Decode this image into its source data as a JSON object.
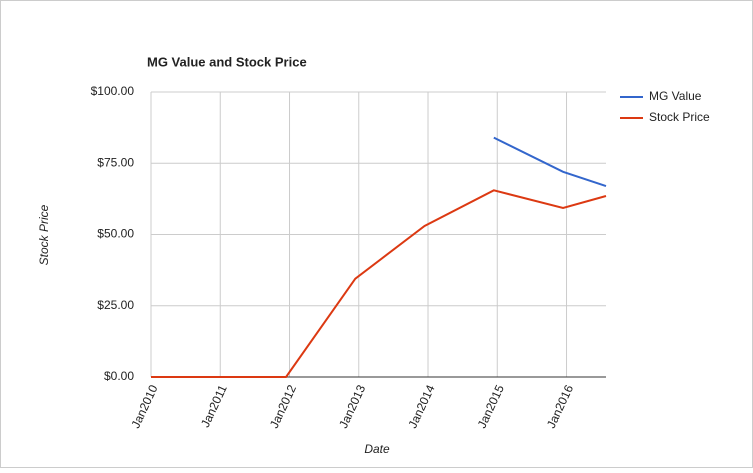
{
  "chart_data": {
    "type": "line",
    "title": "MG Value and Stock Price",
    "x_label": "Date",
    "y_label": "Stock Price",
    "x": [
      2010,
      2011,
      2011.95,
      2012.95,
      2013.95,
      2014.95,
      2015.95,
      2016.57
    ],
    "series": [
      {
        "name": "MG Value",
        "color": "#3366cc",
        "values": [
          null,
          null,
          null,
          null,
          null,
          84,
          72,
          67
        ]
      },
      {
        "name": "Stock Price",
        "color": "#dc3912",
        "values": [
          0,
          0,
          0,
          34.5,
          53,
          65.5,
          59.3,
          63.5
        ]
      }
    ],
    "xlim": [
      2010,
      2016.57
    ],
    "xticks": [
      {
        "value": 2010,
        "label": "Jan2010"
      },
      {
        "value": 2011,
        "label": "Jan2011"
      },
      {
        "value": 2012,
        "label": "Jan2012"
      },
      {
        "value": 2013,
        "label": "Jan2013"
      },
      {
        "value": 2014,
        "label": "Jan2014"
      },
      {
        "value": 2015,
        "label": "Jan2015"
      },
      {
        "value": 2016,
        "label": "Jan2016"
      }
    ],
    "ylim": [
      0,
      100
    ],
    "yticks": [
      {
        "value": 0,
        "label": "$0.00"
      },
      {
        "value": 25,
        "label": "$25.00"
      },
      {
        "value": 50,
        "label": "$50.00"
      },
      {
        "value": 75,
        "label": "$75.00"
      },
      {
        "value": 100,
        "label": "$100.00"
      }
    ],
    "grid": true,
    "legend": "right"
  }
}
